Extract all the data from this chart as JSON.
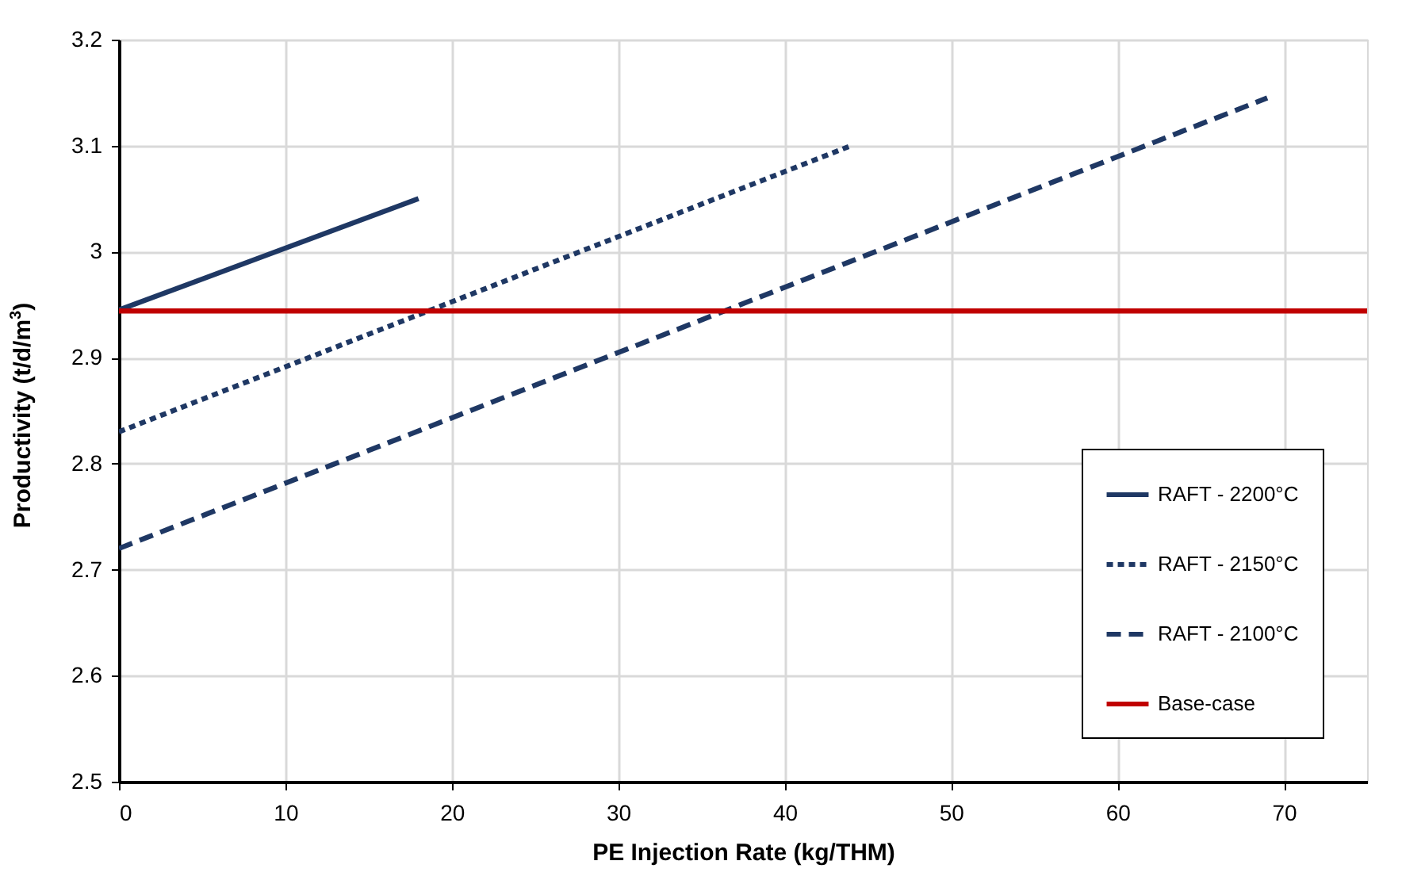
{
  "chart_data": {
    "type": "line",
    "xlabel": "PE Injection Rate (kg/THM)",
    "ylabel": "Productivity (t/d/m$^{3}$)",
    "xlim": [
      0,
      75
    ],
    "xticks": [
      0,
      10,
      20,
      30,
      40,
      50,
      60,
      70
    ],
    "ylim": [
      2.5,
      3.2
    ],
    "yticks": [
      2.5,
      2.6,
      2.7,
      2.8,
      2.9,
      3,
      3.1,
      3.2
    ],
    "grid": true,
    "legend": "bottom right",
    "marker": "none",
    "series": [
      {
        "name": "RAFT - 2200°C",
        "color": "#1f3864",
        "line_style": "solid",
        "x": [
          0,
          18
        ],
        "values": [
          2.945,
          3.05
        ]
      },
      {
        "name": "RAFT - 2150°C",
        "color": "#1f3864",
        "line_style": "dotted",
        "x": [
          0,
          44
        ],
        "values": [
          2.83,
          3.1
        ]
      },
      {
        "name": "RAFT - 2100°C",
        "color": "#1f3864",
        "line_style": "dashed",
        "x": [
          0,
          69
        ],
        "values": [
          2.72,
          3.145
        ]
      },
      {
        "name": "Base-case",
        "color": "#c00000",
        "line_style": "solid",
        "x": [
          0,
          75
        ],
        "values": [
          2.944,
          2.944
        ]
      }
    ]
  }
}
